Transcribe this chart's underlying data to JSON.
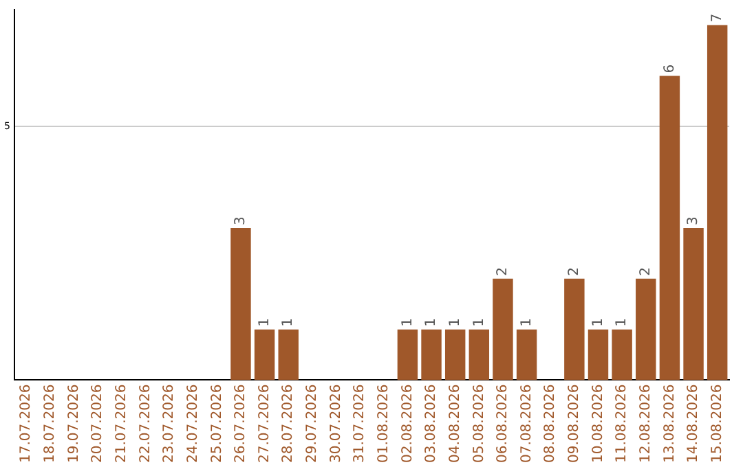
{
  "chart_data": {
    "type": "bar",
    "categories": [
      "17.07.2026",
      "18.07.2026",
      "19.07.2026",
      "20.07.2026",
      "21.07.2026",
      "22.07.2026",
      "23.07.2026",
      "24.07.2026",
      "25.07.2026",
      "26.07.2026",
      "27.07.2026",
      "28.07.2026",
      "29.07.2026",
      "30.07.2026",
      "31.07.2026",
      "01.08.2026",
      "02.08.2026",
      "03.08.2026",
      "04.08.2026",
      "05.08.2026",
      "06.08.2026",
      "07.08.2026",
      "08.08.2026",
      "09.08.2026",
      "10.08.2026",
      "11.08.2026",
      "12.08.2026",
      "13.08.2026",
      "14.08.2026",
      "15.08.2026"
    ],
    "values": [
      0,
      0,
      0,
      0,
      0,
      0,
      0,
      0,
      0,
      3,
      1,
      1,
      0,
      0,
      0,
      0,
      1,
      1,
      1,
      1,
      2,
      1,
      0,
      2,
      1,
      1,
      2,
      6,
      3,
      7
    ],
    "value_labels": [
      null,
      null,
      null,
      null,
      null,
      null,
      null,
      null,
      null,
      "3",
      "1",
      "1",
      null,
      null,
      null,
      null,
      "1",
      "1",
      "1",
      "1",
      "2",
      "1",
      null,
      "2",
      "1",
      "1",
      "2",
      "6",
      "3",
      "7"
    ],
    "color": "#a0582a",
    "ylim": [
      0,
      7.3
    ],
    "yticks": [
      5
    ],
    "grid": "y",
    "legend": false
  }
}
